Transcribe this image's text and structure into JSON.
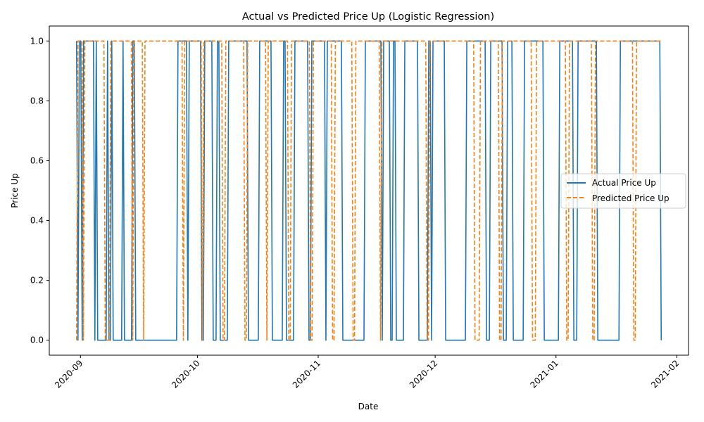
{
  "chart_data": {
    "type": "line",
    "title": "Actual vs Predicted Price Up (Logistic Regression)",
    "xlabel": "Date",
    "ylabel": "Price Up",
    "x_start": "2020-08-31",
    "x_end": "2021-01-28",
    "xlim": [
      "2020-08-24",
      "2021-02-04"
    ],
    "ylim": [
      -0.05,
      1.05
    ],
    "x_ticks": [
      "2020-09",
      "2020-10",
      "2020-11",
      "2020-12",
      "2021-01",
      "2021-02"
    ],
    "y_ticks": [
      "0.0",
      "0.2",
      "0.4",
      "0.6",
      "0.8",
      "1.0"
    ],
    "legend_position": "center-right",
    "grid": false,
    "series": [
      {
        "name": "Actual Price Up",
        "color": "#1f77b4",
        "style": "solid",
        "values": [
          1,
          0,
          1,
          1,
          0,
          1,
          1,
          1,
          1,
          1,
          1,
          1,
          1,
          0,
          1,
          0,
          0,
          0,
          0,
          0,
          0,
          0,
          1,
          0,
          0,
          1,
          0,
          0,
          0,
          0,
          0,
          0,
          0,
          1,
          0,
          0,
          0,
          0,
          0,
          0,
          1,
          1,
          0,
          0,
          0,
          0,
          0,
          0,
          0,
          0,
          0,
          0,
          0,
          0,
          0,
          0,
          0,
          0,
          0,
          0,
          0,
          0,
          0,
          0,
          0,
          0,
          0,
          0,
          0,
          0,
          0,
          0,
          1,
          1,
          1,
          1,
          1,
          1,
          1,
          0,
          1,
          1,
          1,
          1,
          1,
          1,
          1,
          1,
          1,
          0,
          0,
          1,
          1,
          1,
          1,
          1,
          1,
          0,
          0,
          0,
          1,
          1,
          0,
          0,
          0,
          0,
          0,
          0,
          1,
          1,
          1,
          1,
          1,
          1,
          1,
          1,
          1,
          1,
          1,
          1,
          1,
          1,
          0,
          0,
          0,
          0,
          0,
          0,
          0,
          0,
          1,
          1,
          1,
          1,
          1,
          1,
          1,
          1,
          1,
          0,
          0,
          0,
          0,
          0,
          0,
          0,
          0,
          1,
          1,
          0,
          0,
          0,
          0,
          0,
          0,
          1,
          1,
          1,
          1,
          1,
          1,
          1,
          1,
          1,
          1,
          0,
          0,
          1,
          1,
          1,
          1,
          1,
          1,
          1,
          1,
          1,
          1,
          0,
          1,
          1,
          1,
          1,
          1,
          1,
          1,
          1,
          1,
          1,
          1,
          0,
          0,
          0,
          0,
          0,
          0,
          0,
          0,
          0,
          0,
          0,
          0,
          0,
          0,
          0,
          0,
          1,
          1,
          1,
          1,
          1,
          1,
          1,
          1,
          1,
          1,
          1,
          1,
          0,
          1,
          1,
          1,
          1,
          1,
          0,
          0,
          1,
          1,
          0,
          0,
          0,
          0,
          0,
          0,
          1,
          1,
          1,
          1,
          1,
          1,
          1,
          1,
          1,
          1,
          0,
          0,
          0,
          0,
          0,
          0,
          0,
          1,
          1,
          0,
          1,
          1,
          1,
          1,
          1,
          1,
          1,
          1,
          1,
          0,
          0,
          0,
          0,
          0,
          0,
          0,
          0,
          0,
          0,
          0,
          0,
          0,
          0,
          0,
          1,
          1,
          1,
          1,
          1,
          1,
          1,
          1,
          1,
          1,
          1,
          1,
          1,
          1,
          0,
          0,
          0,
          1,
          1,
          1,
          1,
          1,
          1,
          1,
          1,
          1,
          0,
          0,
          0,
          1,
          1,
          1,
          1,
          0,
          0,
          0,
          0,
          0,
          0,
          0,
          0,
          1,
          1,
          1,
          1,
          1,
          1,
          1,
          1,
          1,
          1,
          1,
          1,
          1,
          1,
          0,
          0,
          0,
          0,
          0,
          0,
          0,
          0,
          0,
          0,
          0,
          1,
          1,
          1,
          1,
          1,
          1,
          1,
          1,
          1,
          1,
          0,
          0,
          0,
          1,
          1,
          1,
          1,
          1,
          1,
          1,
          1,
          1,
          1,
          1,
          1,
          1,
          1,
          0,
          0,
          0,
          0,
          0,
          0,
          0,
          0,
          0,
          0,
          0,
          0,
          0,
          0,
          0,
          0,
          1,
          1,
          1,
          1,
          1,
          1,
          1,
          1,
          1,
          1,
          1,
          1,
          1,
          1,
          1,
          1,
          1,
          1,
          1,
          1,
          1,
          1,
          1,
          1,
          1,
          1,
          1,
          1,
          1,
          0
        ]
      },
      {
        "name": "Predicted Price Up",
        "color": "#ff7f0e",
        "style": "dashed",
        "values": [
          0,
          1,
          1,
          1,
          1,
          0,
          1,
          1,
          1,
          1,
          1,
          1,
          1,
          1,
          1,
          1,
          1,
          1,
          1,
          1,
          1,
          0,
          0,
          0,
          0,
          1,
          1,
          1,
          1,
          1,
          1,
          1,
          1,
          1,
          1,
          1,
          1,
          1,
          1,
          1,
          1,
          0,
          1,
          1,
          1,
          1,
          1,
          1,
          1,
          0,
          1,
          1,
          1,
          1,
          1,
          1,
          1,
          1,
          1,
          1,
          1,
          1,
          1,
          1,
          1,
          1,
          1,
          1,
          1,
          1,
          1,
          1,
          1,
          1,
          1,
          1,
          1,
          1,
          0,
          1,
          1,
          1,
          1,
          1,
          1,
          1,
          1,
          1,
          1,
          1,
          1,
          1,
          0,
          1,
          1,
          1,
          1,
          1,
          1,
          1,
          1,
          1,
          1,
          1,
          1,
          1,
          1,
          0,
          0,
          1,
          1,
          1,
          1,
          1,
          1,
          1,
          1,
          1,
          1,
          1,
          1,
          1,
          1,
          0,
          0,
          1,
          1,
          1,
          1,
          1,
          1,
          1,
          1,
          1,
          1,
          1,
          1,
          1,
          1,
          0,
          1,
          1,
          1,
          1,
          1,
          1,
          1,
          1,
          1,
          1,
          1,
          1,
          1,
          1,
          1,
          0,
          0,
          1,
          1,
          1,
          1,
          1,
          1,
          1,
          1,
          1,
          1,
          1,
          1,
          1,
          1,
          0,
          0,
          1,
          1,
          1,
          1,
          1,
          1,
          1,
          1,
          1,
          1,
          1,
          1,
          1,
          1,
          0,
          0,
          1,
          1,
          1,
          1,
          1,
          1,
          1,
          1,
          1,
          1,
          1,
          1,
          1,
          0,
          0,
          1,
          1,
          1,
          1,
          1,
          1,
          1,
          1,
          1,
          1,
          1,
          1,
          1,
          1,
          1,
          1,
          1,
          1,
          0,
          1,
          1,
          1,
          1,
          1,
          1,
          1,
          1,
          1,
          1,
          1,
          1,
          1,
          1,
          1,
          1,
          1,
          1,
          1,
          1,
          1,
          1,
          1,
          1,
          1,
          1,
          1,
          1,
          1,
          1,
          1,
          1,
          1,
          0,
          0,
          1,
          1,
          1,
          1,
          1,
          1,
          1,
          1,
          1,
          1,
          1,
          1,
          1,
          1,
          1,
          1,
          1,
          1,
          1,
          1,
          1,
          1,
          1,
          1,
          1,
          1,
          1,
          1,
          1,
          1,
          1,
          1,
          1,
          0,
          0,
          0,
          0,
          1,
          1,
          1,
          1,
          1,
          1,
          1,
          1,
          1,
          1,
          1,
          1,
          1,
          1,
          0,
          0,
          1,
          1,
          1,
          1,
          1,
          1,
          1,
          1,
          1,
          1,
          1,
          1,
          1,
          1,
          1,
          1,
          1,
          1,
          1,
          1,
          1,
          1,
          0,
          0,
          0,
          1,
          1,
          1,
          1,
          1,
          1,
          1,
          1,
          1,
          1,
          1,
          1,
          1,
          1,
          1,
          1,
          1,
          1,
          1,
          1,
          1,
          1,
          0,
          0,
          1,
          1,
          1,
          1,
          1,
          1,
          1,
          1,
          1,
          1,
          1,
          1,
          1,
          1,
          1,
          1,
          1,
          0,
          0,
          1,
          1,
          1,
          1,
          1,
          1,
          1,
          1,
          1,
          1,
          1,
          1,
          1,
          1,
          1,
          1,
          1,
          1,
          1,
          1,
          1,
          1,
          1,
          1,
          1,
          1,
          1,
          1,
          0,
          0,
          1,
          1,
          1,
          1,
          1,
          1,
          1,
          1,
          1,
          1,
          1,
          1,
          1,
          1,
          1,
          1,
          1,
          1,
          1
        ]
      }
    ]
  }
}
